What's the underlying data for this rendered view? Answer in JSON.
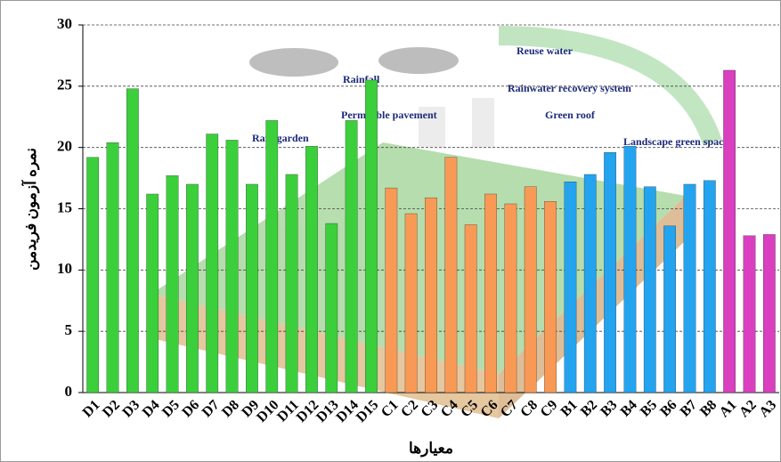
{
  "chart_data": {
    "type": "bar",
    "y_label": "نمره آزمون فریدمن",
    "x_label": "معیارها",
    "categories": [
      "D1",
      "D2",
      "D3",
      "D4",
      "D5",
      "D6",
      "D7",
      "D8",
      "D9",
      "D10",
      "D11",
      "D12",
      "D13",
      "D14",
      "D15",
      "C1",
      "C2",
      "C3",
      "C4",
      "C5",
      "C6",
      "C7",
      "C8",
      "C9",
      "B1",
      "B2",
      "B3",
      "B4",
      "B5",
      "B6",
      "B7",
      "B8",
      "A1",
      "A2",
      "A3"
    ],
    "values": [
      19.2,
      20.4,
      24.8,
      16.2,
      17.7,
      17.0,
      21.1,
      20.6,
      17.0,
      22.2,
      17.8,
      20.1,
      13.8,
      22.2,
      25.5,
      16.7,
      14.6,
      15.9,
      19.2,
      13.7,
      16.2,
      15.4,
      16.8,
      15.6,
      17.2,
      17.8,
      19.6,
      20.1,
      16.8,
      13.6,
      17.0,
      17.3,
      26.3,
      12.8,
      12.9
    ],
    "colors": [
      "#3ccf3c",
      "#3ccf3c",
      "#3ccf3c",
      "#3ccf3c",
      "#3ccf3c",
      "#3ccf3c",
      "#3ccf3c",
      "#3ccf3c",
      "#3ccf3c",
      "#3ccf3c",
      "#3ccf3c",
      "#3ccf3c",
      "#3ccf3c",
      "#3ccf3c",
      "#3ccf3c",
      "#f89a55",
      "#f89a55",
      "#f89a55",
      "#f89a55",
      "#f89a55",
      "#f89a55",
      "#f89a55",
      "#f89a55",
      "#f89a55",
      "#24a3ef",
      "#24a3ef",
      "#24a3ef",
      "#24a3ef",
      "#24a3ef",
      "#24a3ef",
      "#24a3ef",
      "#24a3ef",
      "#d93fbf",
      "#d93fbf",
      "#d93fbf"
    ],
    "ylim": [
      0,
      30
    ],
    "yticks": [
      0,
      5,
      10,
      15,
      20,
      25,
      30
    ],
    "grid": true,
    "background_labels": [
      "Reuse water",
      "Rainfall",
      "Rainwater recovery system",
      "Green roof",
      "Permeable pavement",
      "Rain garden",
      "Landscape green space"
    ]
  }
}
